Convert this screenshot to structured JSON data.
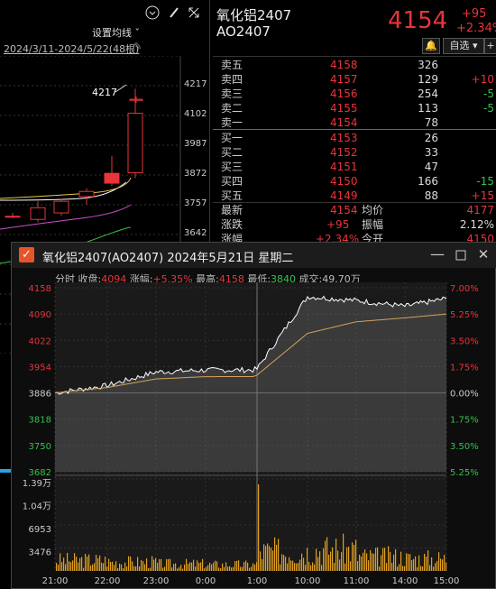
{
  "kline": {
    "toolbar_icons": [
      "chevron-down-icon",
      "brush-icon",
      "expand-icon"
    ],
    "settings_label": "设置均线",
    "range_label": "2024/3/11-2024/5/22(48根)",
    "max_label": "4217",
    "axis": [
      "4217",
      "4102",
      "3987",
      "3872",
      "3757",
      "3642"
    ],
    "candles": [
      {
        "o": 3700,
        "h": 3715,
        "l": 3695,
        "c": 3702
      },
      {
        "o": 3690,
        "h": 3760,
        "l": 3680,
        "c": 3735
      },
      {
        "o": 3715,
        "h": 3770,
        "l": 3705,
        "c": 3760
      },
      {
        "o": 3778,
        "h": 3810,
        "l": 3748,
        "c": 3798
      },
      {
        "o": 3868,
        "h": 3935,
        "l": 3820,
        "c": 3830
      },
      {
        "o": 3870,
        "h": 4195,
        "l": 3850,
        "c": 4100
      },
      {
        "o": 4150,
        "h": 4165,
        "l": 4140,
        "c": 4154
      }
    ]
  },
  "quote": {
    "name": "氧化铝2407",
    "code": "AO2407",
    "price": "4154",
    "change": "+95",
    "change_pct": "+2.34%",
    "bell_icon": "bell-icon",
    "watchlist_label": "自选",
    "asks": [
      {
        "label": "卖五",
        "price": "4158",
        "vol": "326",
        "chg": ""
      },
      {
        "label": "卖四",
        "price": "4157",
        "vol": "129",
        "chg": "+10"
      },
      {
        "label": "卖三",
        "price": "4156",
        "vol": "254",
        "chg": "-5"
      },
      {
        "label": "卖二",
        "price": "4155",
        "vol": "113",
        "chg": "-5"
      },
      {
        "label": "卖一",
        "price": "4154",
        "vol": "78",
        "chg": ""
      }
    ],
    "bids": [
      {
        "label": "买一",
        "price": "4153",
        "vol": "26",
        "chg": ""
      },
      {
        "label": "买二",
        "price": "4152",
        "vol": "33",
        "chg": ""
      },
      {
        "label": "买三",
        "price": "4151",
        "vol": "47",
        "chg": ""
      },
      {
        "label": "买四",
        "price": "4150",
        "vol": "166",
        "chg": "-15"
      },
      {
        "label": "买五",
        "price": "4149",
        "vol": "88",
        "chg": "+15"
      }
    ],
    "latest_label": "最新",
    "latest_value": "4154",
    "avg_label": "均价",
    "avg_value": "4177",
    "chg_label": "涨跌",
    "chg_value": "+95",
    "amp_label": "振幅",
    "amp_value": "2.12%",
    "pct_label": "涨幅",
    "pct_value": "+2.34%",
    "open_label": "今开",
    "open_value": "4150"
  },
  "popup": {
    "title": "氧化铝2407(AO2407) 2024年5月21日 星期二",
    "minimize_icon": "minimize-icon",
    "restore_icon": "restore-icon",
    "close_icon": "close-icon",
    "info": {
      "label_time": "分时",
      "label_close": "收盘:",
      "close": "4094",
      "label_change": "涨幅:",
      "change": "+5.35%",
      "label_high": "最高:",
      "high": "4158",
      "label_low": "最低:",
      "low": "3840",
      "label_vol": "成交:",
      "vol": "49.70万"
    },
    "price_axis_left": [
      "4158",
      "4090",
      "4022",
      "3954",
      "3886",
      "3818",
      "3750",
      "3682"
    ],
    "price_axis_right": [
      "7.00%",
      "5.25%",
      "3.50%",
      "1.75%",
      "0.00%",
      "1.75%",
      "3.50%",
      "5.25%"
    ],
    "vol_axis": [
      "1.39万",
      "1.04万",
      "6953",
      "3476"
    ],
    "time_axis": [
      "21:00",
      "22:00",
      "23:00",
      "0:00",
      "1:00",
      "10:00",
      "11:00",
      "14:00",
      "15:00"
    ]
  },
  "chart_data": {
    "type": "line",
    "title": "",
    "x": [
      "21:00",
      "22:00",
      "23:00",
      "0:00",
      "1:00",
      "10:00",
      "11:00",
      "14:00",
      "15:00"
    ],
    "series": [
      {
        "values": [
          3886,
          3905,
          3940,
          3945,
          3948,
          4135,
          4125,
          4110,
          4130
        ]
      },
      {
        "values": [
          3886,
          3900,
          3922,
          3928,
          3932,
          4040,
          4070,
          4080,
          4090
        ]
      }
    ],
    "ylim": [
      3682,
      4158
    ],
    "volume": [
      3000,
      2500,
      2000,
      1800,
      13900,
      6000,
      4000,
      3500,
      4500
    ],
    "grid": true,
    "colors": {
      "price": "#ffffff",
      "avg": "#d4a35a",
      "volume": "#e0a020"
    }
  }
}
